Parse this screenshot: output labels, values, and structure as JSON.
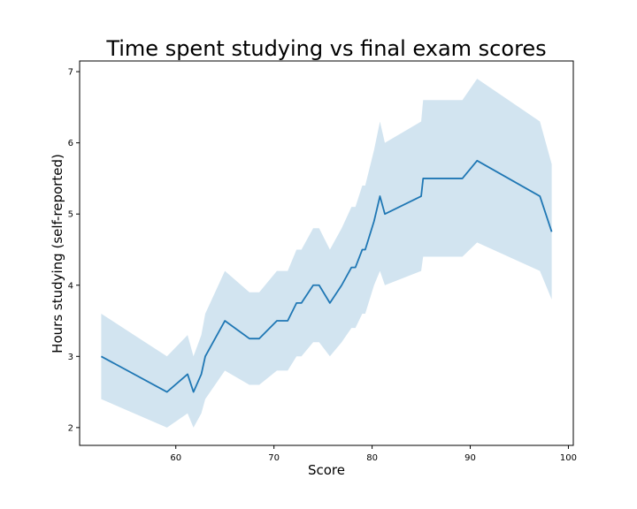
{
  "chart_data": {
    "type": "line",
    "title": "Time spent studying vs final exam scores",
    "xlabel": "Score",
    "ylabel": "Hours studying (self-reported)",
    "xlim": [
      50.2,
      100.5
    ],
    "ylim": [
      1.75,
      7.15
    ],
    "xticks": [
      60,
      70,
      80,
      90,
      100
    ],
    "yticks": [
      2,
      3,
      4,
      5,
      6,
      7
    ],
    "grid": false,
    "legend": "none",
    "line_color": "#1f77b4",
    "band_color": "#1f77b4",
    "series": [
      {
        "x": [
          52.4,
          59.1,
          61.2,
          61.8,
          62.6,
          63.0,
          65.0,
          67.5,
          68.5,
          70.3,
          71.4,
          72.3,
          72.8,
          74.0,
          74.6,
          75.7,
          76.9,
          77.9,
          78.3,
          79.0,
          79.3,
          80.2,
          80.8,
          81.3,
          85.0,
          85.2,
          89.2,
          90.7,
          97.1,
          98.3
        ],
        "y": [
          3.0,
          2.5,
          2.75,
          2.5,
          2.75,
          3.0,
          3.5,
          3.25,
          3.25,
          3.5,
          3.5,
          3.75,
          3.75,
          4.0,
          4.0,
          3.75,
          4.0,
          4.25,
          4.25,
          4.5,
          4.5,
          4.9,
          5.25,
          5.0,
          5.25,
          5.5,
          5.5,
          5.75,
          5.25,
          4.75
        ],
        "lower": [
          2.4,
          2.0,
          2.2,
          2.0,
          2.2,
          2.4,
          2.8,
          2.6,
          2.6,
          2.8,
          2.8,
          3.0,
          3.0,
          3.2,
          3.2,
          3.0,
          3.2,
          3.4,
          3.4,
          3.6,
          3.6,
          4.0,
          4.2,
          4.0,
          4.2,
          4.4,
          4.4,
          4.6,
          4.2,
          3.8
        ],
        "upper": [
          3.6,
          3.0,
          3.3,
          3.0,
          3.3,
          3.6,
          4.2,
          3.9,
          3.9,
          4.2,
          4.2,
          4.5,
          4.5,
          4.8,
          4.8,
          4.5,
          4.8,
          5.1,
          5.1,
          5.4,
          5.4,
          5.9,
          6.3,
          6.0,
          6.3,
          6.6,
          6.6,
          6.9,
          6.3,
          5.7
        ]
      }
    ]
  }
}
